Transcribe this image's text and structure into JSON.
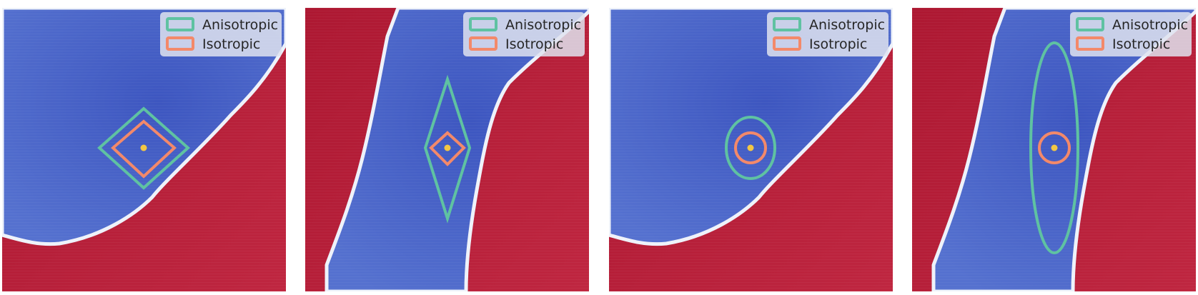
{
  "colors": {
    "region_blue": "#4a66c8",
    "region_blue_deep": "#3c55c0",
    "region_red": "#b81c3a",
    "region_red_deep": "#a51531",
    "boundary_light": "#e8edf6",
    "anisotropic": "#5fc2a2",
    "isotropic": "#f3896a",
    "center_point": "#f2c744",
    "legend_bg": "#dfe3ef"
  },
  "legend": {
    "anisotropic_label": "Anisotropic",
    "isotropic_label": "Isotropic"
  },
  "panels": [
    {
      "shape": "diamond",
      "anisotropic_stretch": "uniform"
    },
    {
      "shape": "diamond",
      "anisotropic_stretch": "vertical"
    },
    {
      "shape": "ellipse",
      "anisotropic_stretch": "uniform"
    },
    {
      "shape": "ellipse",
      "anisotropic_stretch": "vertical"
    }
  ]
}
